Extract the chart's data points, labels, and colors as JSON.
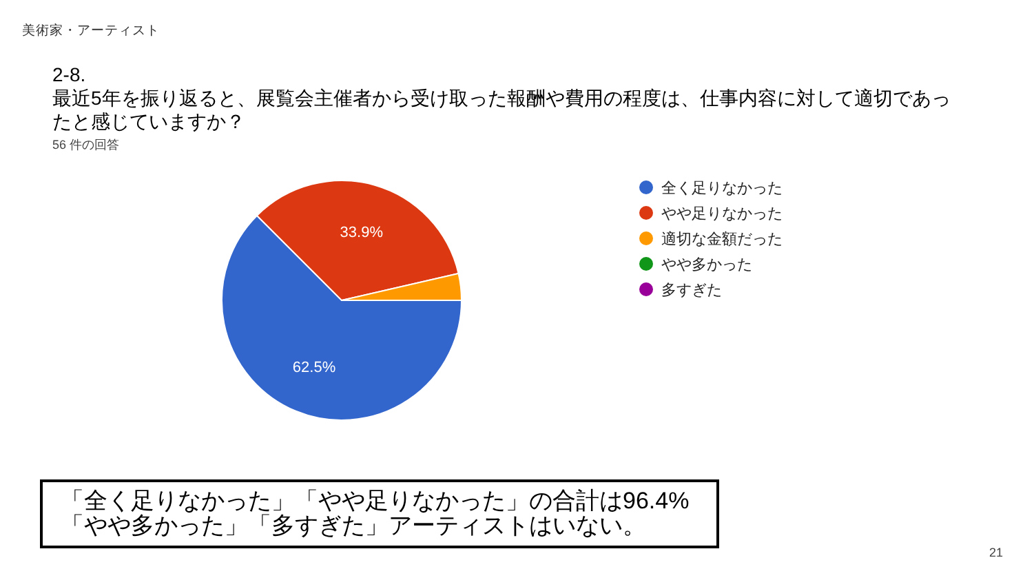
{
  "chart_data": {
    "type": "pie",
    "title": "2-8.",
    "subtitle": "最近5年を振り返ると、展覧会主催者から受け取った報酬や費用の程度は、仕事内容に対して適切であったと感じていますか？",
    "categories": [
      "全く足りなかった",
      "やや足りなかった",
      "適切な金額だった",
      "やや多かった",
      "多すぎた"
    ],
    "values": [
      62.5,
      33.9,
      3.6,
      0,
      0
    ],
    "colors": [
      "#3366cc",
      "#dc3912",
      "#ff9900",
      "#109618",
      "#990099"
    ],
    "value_labels": [
      "62.5%",
      "33.9%",
      null,
      null,
      null
    ],
    "legend": "right",
    "annotations": [
      "美術家・アーティスト",
      "56 件の回答",
      "「全く足りなかった」「やや足りなかった」の合計は96.4%\n「やや多かった」「多すぎた」アーティストはいない。",
      "21"
    ]
  }
}
